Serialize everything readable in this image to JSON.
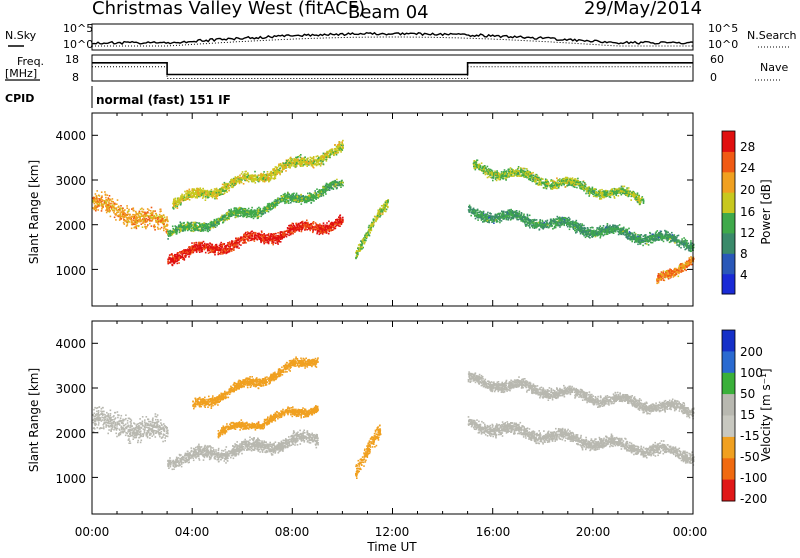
{
  "header": {
    "station": "Christmas Valley West (fitACF)",
    "beam": "Beam 04",
    "date": "29/May/2014"
  },
  "noise_panel": {
    "left_label": "N.Sky",
    "left_ticks": [
      "10^5",
      "10^0"
    ],
    "right_label": "N.Search",
    "right_ticks": [
      "10^5",
      "10^0"
    ]
  },
  "freq_panel": {
    "left_label_1": "Freq.",
    "left_label_2": "[MHz]",
    "left_ticks": [
      "18",
      "8"
    ],
    "right_label": "Nave",
    "right_ticks": [
      "60",
      "0"
    ]
  },
  "cpid_panel": {
    "label": "CPID",
    "text": "normal (fast) 151 IF"
  },
  "power_panel": {
    "ylabel": "Slant Range [km]",
    "yticks": [
      "1000",
      "2000",
      "3000",
      "4000"
    ],
    "colorbar_label": "Power [dB]",
    "colorbar_ticks": [
      "4",
      "8",
      "12",
      "16",
      "20",
      "24",
      "28"
    ]
  },
  "velocity_panel": {
    "ylabel": "Slant Range [km]",
    "yticks": [
      "1000",
      "2000",
      "3000",
      "4000"
    ],
    "colorbar_label": "Velocity [m s⁻¹]",
    "colorbar_ticks": [
      "200",
      "100",
      "50",
      "15",
      "-15",
      "-50",
      "-100",
      "-200"
    ]
  },
  "xaxis": {
    "label": "Time UT",
    "ticks": [
      "00:00",
      "04:00",
      "08:00",
      "12:00",
      "16:00",
      "20:00",
      "00:00"
    ]
  },
  "chart_data": {
    "type": "heatmap",
    "x_range_hours": [
      0,
      24
    ],
    "y_range_km": [
      180,
      4500
    ],
    "frequency_mhz": [
      {
        "start": 0,
        "end": 3,
        "value": 15
      },
      {
        "start": 3,
        "end": 15,
        "value": 10.5
      },
      {
        "start": 15,
        "end": 24,
        "value": 15
      }
    ],
    "power_scatter_bands": [
      {
        "t0": 0,
        "t1": 3,
        "r0": 2500,
        "r1": 2000,
        "w": 300,
        "p": 20
      },
      {
        "t0": 3,
        "t1": 10,
        "r0": 1300,
        "r1": 2100,
        "w": 160,
        "p": 27
      },
      {
        "t0": 3.2,
        "t1": 10,
        "r0": 2500,
        "r1": 3700,
        "w": 160,
        "p": 16
      },
      {
        "t0": 3,
        "t1": 10,
        "r0": 1800,
        "r1": 2900,
        "w": 140,
        "p": 12
      },
      {
        "t0": 10.5,
        "t1": 11.8,
        "r0": 1400,
        "r1": 2500,
        "w": 160,
        "p": 14
      },
      {
        "t0": 15.2,
        "t1": 22,
        "r0": 3300,
        "r1": 2600,
        "w": 150,
        "p": 14
      },
      {
        "t0": 15,
        "t1": 24,
        "r0": 2300,
        "r1": 1600,
        "w": 160,
        "p": 10
      },
      {
        "t0": 22.5,
        "t1": 24,
        "r0": 700,
        "r1": 1300,
        "w": 150,
        "p": 22
      }
    ],
    "velocity_scatter_bands": [
      {
        "t0": 0,
        "t1": 3,
        "r0": 2300,
        "r1": 2000,
        "w": 350,
        "v": 0
      },
      {
        "t0": 3,
        "t1": 9,
        "r0": 1400,
        "r1": 1900,
        "w": 200,
        "v": 0
      },
      {
        "t0": 4,
        "t1": 9,
        "r0": 2600,
        "r1": 3700,
        "w": 150,
        "v": -40
      },
      {
        "t0": 5,
        "t1": 9,
        "r0": 2000,
        "r1": 2600,
        "w": 120,
        "v": -70
      },
      {
        "t0": 10.5,
        "t1": 11.5,
        "r0": 1200,
        "r1": 2000,
        "w": 220,
        "v": -60
      },
      {
        "t0": 15,
        "t1": 24,
        "r0": 3200,
        "r1": 2500,
        "w": 160,
        "v": 0
      },
      {
        "t0": 15,
        "t1": 24,
        "r0": 2200,
        "r1": 1500,
        "w": 180,
        "v": 0
      }
    ],
    "power_colorbar_range_db": [
      0,
      30
    ],
    "velocity_colorbar_range": [
      -250,
      250
    ]
  }
}
